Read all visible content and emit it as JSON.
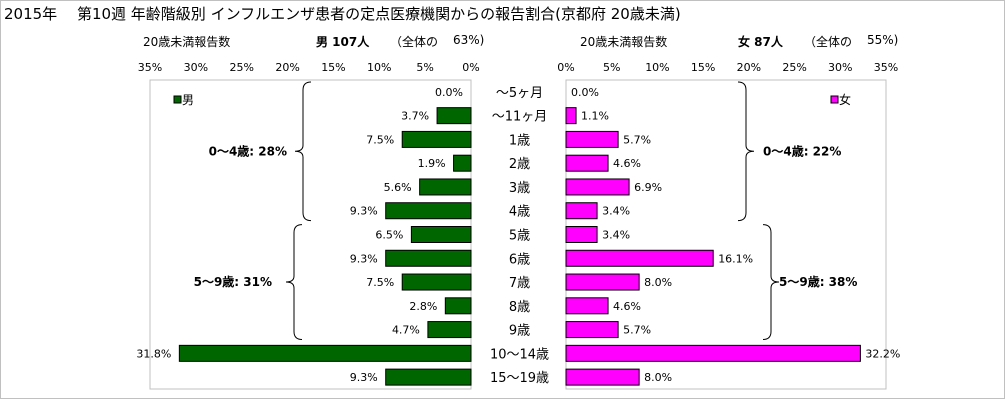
{
  "title": "2015年　 第10週 年齢階級別 インフルエンザ患者の定点医療機関からの報告割合(京都府 20歳未満)",
  "male_header": {
    "left": "20歳未満報告数",
    "main": "男 107人",
    "total_label": "（全体の",
    "total_pct": "63%)"
  },
  "female_header": {
    "left": "20歳未満報告数",
    "main": "女 87人",
    "total_label": "（全体の",
    "total_pct": "55%)"
  },
  "colors": {
    "male": "#006600",
    "female": "#ff00ff",
    "border": "#000000"
  },
  "chart_data": {
    "type": "bar",
    "orientation": "horizontal",
    "categories": [
      "～5ヶ月",
      "～11ヶ月",
      "1歳",
      "2歳",
      "3歳",
      "4歳",
      "5歳",
      "6歳",
      "7歳",
      "8歳",
      "9歳",
      "10～14歳",
      "15～19歳"
    ],
    "series": [
      {
        "name": "男",
        "values": [
          0.0,
          3.7,
          7.5,
          1.9,
          5.6,
          9.3,
          6.5,
          9.3,
          7.5,
          2.8,
          4.7,
          31.8,
          9.3
        ],
        "labels": [
          "0.0%",
          "3.7%",
          "7.5%",
          "1.9%",
          "5.6%",
          "9.3%",
          "6.5%",
          "9.3%",
          "7.5%",
          "2.8%",
          "4.7%",
          "31.8%",
          "9.3%"
        ]
      },
      {
        "name": "女",
        "values": [
          0.0,
          1.1,
          5.7,
          4.6,
          6.9,
          3.4,
          3.4,
          16.1,
          8.0,
          4.6,
          5.7,
          32.2,
          8.0
        ],
        "labels": [
          "0.0%",
          "1.1%",
          "5.7%",
          "4.6%",
          "6.9%",
          "3.4%",
          "3.4%",
          "16.1%",
          "8.0%",
          "4.6%",
          "5.7%",
          "32.2%",
          "8.0%"
        ]
      }
    ],
    "male_axis_ticks": [
      "35%",
      "30%",
      "25%",
      "20%",
      "15%",
      "10%",
      "5%",
      "0%"
    ],
    "female_axis_ticks": [
      "0%",
      "5%",
      "10%",
      "15%",
      "20%",
      "25%",
      "30%",
      "35%"
    ],
    "xlim": [
      0,
      35
    ],
    "grid": false,
    "legend_position": "top-left / top-right",
    "annotations": {
      "male_0_4": "0～4歳: 28%",
      "male_5_9": "5～9歳: 31%",
      "female_0_4": "0～4歳: 22%",
      "female_5_9": "5～9歳: 38%"
    }
  }
}
